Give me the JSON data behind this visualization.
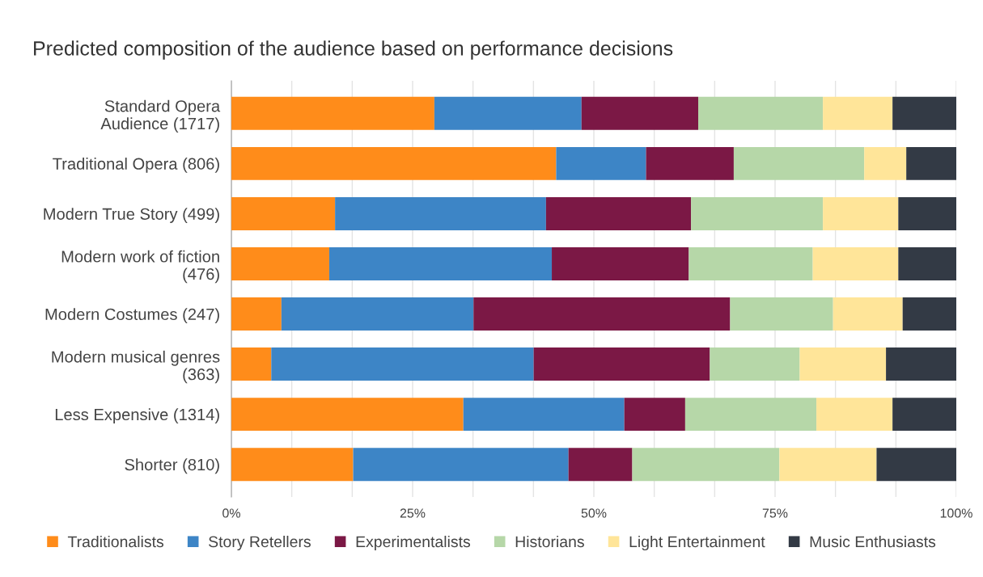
{
  "chart_data": {
    "type": "bar",
    "orientation": "horizontal",
    "stacked": true,
    "title": "Predicted composition of the audience based on performance decisions",
    "categories": [
      "Standard Opera\nAudience (1717)",
      "Traditional Opera (806)",
      "Modern True Story (499)",
      "Modern work of fiction\n(476)",
      "Modern Costumes (247)",
      "Modern musical genres\n(363)",
      "Less Expensive (1314)",
      "Shorter (810)"
    ],
    "series": [
      {
        "name": "Traditionalists",
        "color": "#ff8c1a",
        "values": [
          28.0,
          44.8,
          14.3,
          13.5,
          6.9,
          5.5,
          32.0,
          16.8
        ]
      },
      {
        "name": "Story Retellers",
        "color": "#3d85c6",
        "values": [
          20.3,
          12.4,
          29.1,
          30.7,
          26.5,
          36.2,
          22.2,
          29.7
        ]
      },
      {
        "name": "Experimentalists",
        "color": "#7b1845",
        "values": [
          16.1,
          12.1,
          20.0,
          18.9,
          35.4,
          24.3,
          8.4,
          8.8
        ]
      },
      {
        "name": "Historians",
        "color": "#b6d7a8",
        "values": [
          17.2,
          18.0,
          18.2,
          17.1,
          14.2,
          12.4,
          18.1,
          20.3
        ]
      },
      {
        "name": "Light Entertainment",
        "color": "#ffe599",
        "values": [
          9.6,
          5.8,
          10.4,
          11.8,
          9.6,
          11.9,
          10.5,
          13.4
        ]
      },
      {
        "name": "Music Enthusiasts",
        "color": "#333a45",
        "values": [
          8.8,
          6.9,
          8.0,
          8.0,
          7.4,
          9.7,
          8.8,
          11.0
        ]
      }
    ],
    "xlim": [
      0,
      100
    ],
    "xticks": [
      {
        "value": 0,
        "label": "0%"
      },
      {
        "value": 8.33,
        "label": null
      },
      {
        "value": 16.67,
        "label": null
      },
      {
        "value": 25,
        "label": "25%"
      },
      {
        "value": 33.33,
        "label": null
      },
      {
        "value": 41.67,
        "label": null
      },
      {
        "value": 50,
        "label": "50%"
      },
      {
        "value": 58.33,
        "label": null
      },
      {
        "value": 66.67,
        "label": null
      },
      {
        "value": 75,
        "label": "75%"
      },
      {
        "value": 83.33,
        "label": null
      },
      {
        "value": 91.67,
        "label": null
      },
      {
        "value": 100,
        "label": "100%"
      }
    ],
    "grid": "x",
    "legend": "bottom"
  }
}
